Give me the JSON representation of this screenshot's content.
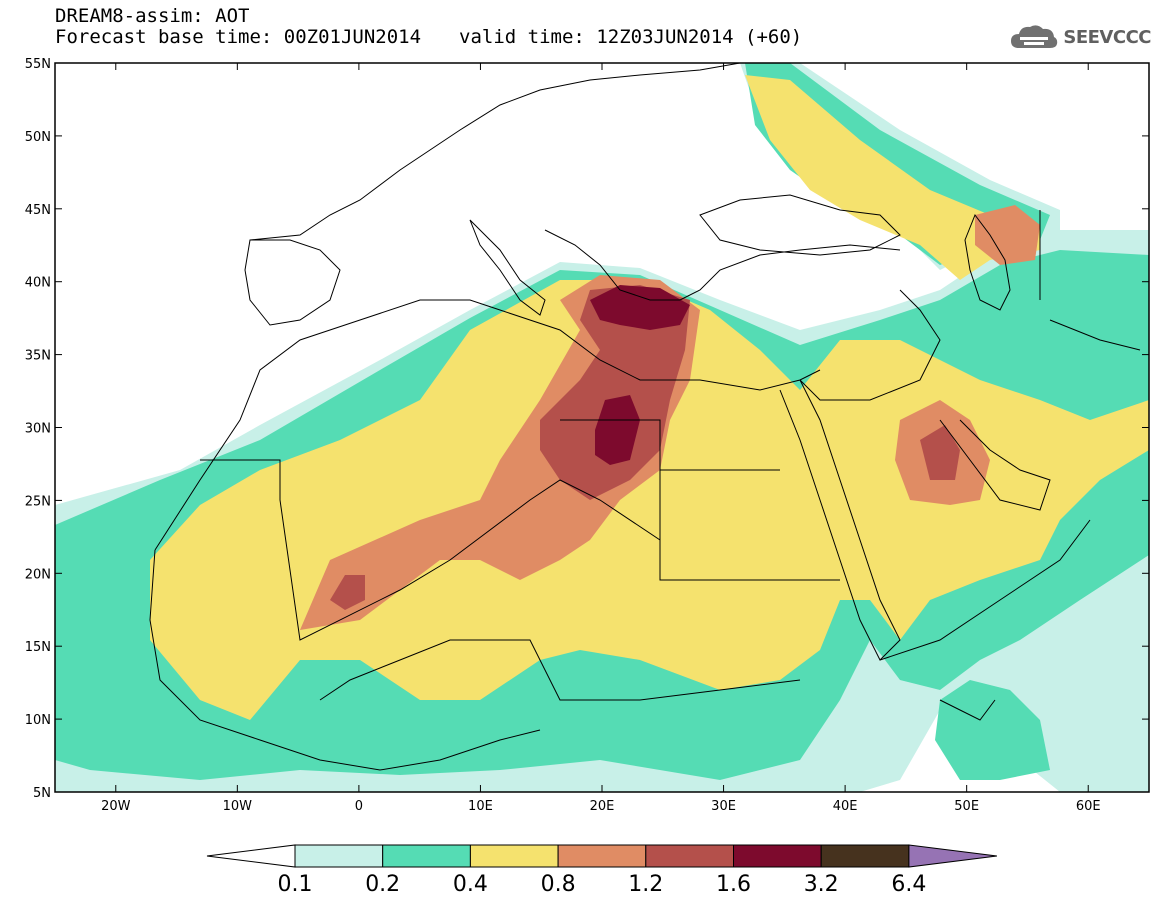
{
  "header": {
    "title_line1": "DREAM8-assim: AOT",
    "forecast_base": "Forecast base time: 00Z01JUN2014",
    "valid_time": "valid time: 12Z03JUN2014 (+60)"
  },
  "logo": {
    "text": "SEEVCCC",
    "icon": "cloud-icon"
  },
  "map": {
    "lat_labels": [
      "55N",
      "50N",
      "45N",
      "40N",
      "35N",
      "30N",
      "25N",
      "20N",
      "15N",
      "10N",
      "5N"
    ],
    "lon_labels": [
      "20W",
      "10W",
      "0",
      "10E",
      "20E",
      "30E",
      "40E",
      "50E",
      "60E"
    ],
    "lon_range": [
      -25,
      65
    ],
    "lat_range": [
      5,
      55
    ]
  },
  "legend": {
    "labels": [
      "0.1",
      "0.2",
      "0.4",
      "0.8",
      "1.2",
      "1.6",
      "3.2",
      "6.4"
    ],
    "colors": [
      "#ffffff",
      "#c8f0e8",
      "#55dcb4",
      "#f5e26e",
      "#e08c64",
      "#b4504b",
      "#7d0a2d",
      "#46321e",
      "#9673b4"
    ]
  }
}
